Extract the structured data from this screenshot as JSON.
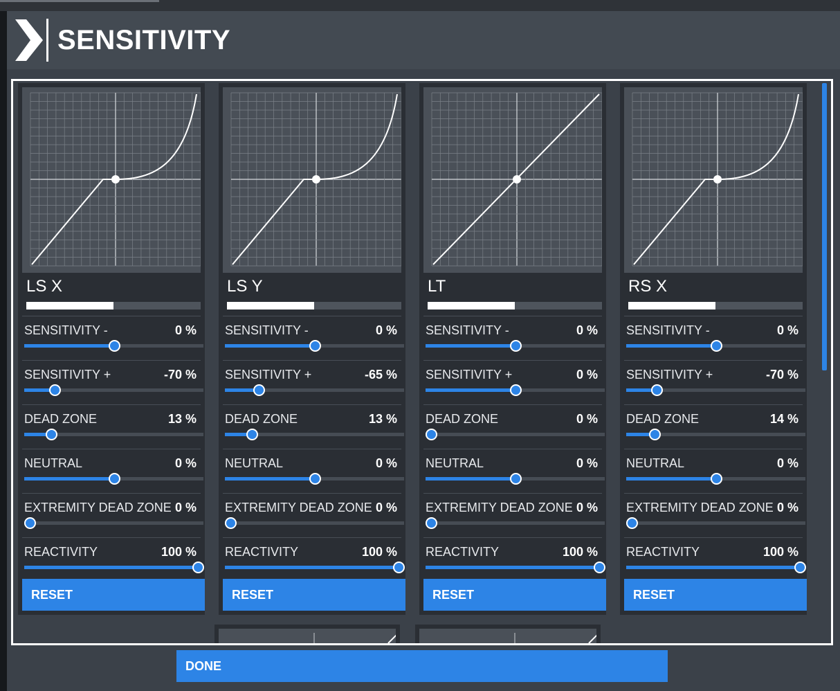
{
  "header": {
    "title": "SENSITIVITY"
  },
  "footer": {
    "done_label": "DONE"
  },
  "colors": {
    "accent": "#2d84e6",
    "panel": "#3b4149",
    "column": "#2a2e34",
    "graph": "#4a5058"
  },
  "axes": [
    {
      "name": "LS X",
      "meter": 0.5,
      "curve": "expo",
      "reset_label": "RESET",
      "settings": [
        {
          "label": "SENSITIVITY -",
          "value": "0 %",
          "pos": 0.5
        },
        {
          "label": "SENSITIVITY +",
          "value": "-70 %",
          "pos": 0.17
        },
        {
          "label": "DEAD ZONE",
          "value": "13 %",
          "pos": 0.15
        },
        {
          "label": "NEUTRAL",
          "value": "0 %",
          "pos": 0.5
        },
        {
          "label": "EXTREMITY DEAD ZONE",
          "value": "0 %",
          "pos": 0.03
        },
        {
          "label": "REACTIVITY",
          "value": "100 %",
          "pos": 0.97
        }
      ]
    },
    {
      "name": "LS Y",
      "meter": 0.5,
      "curve": "expo",
      "reset_label": "RESET",
      "settings": [
        {
          "label": "SENSITIVITY -",
          "value": "0 %",
          "pos": 0.5
        },
        {
          "label": "SENSITIVITY +",
          "value": "-65 %",
          "pos": 0.19
        },
        {
          "label": "DEAD ZONE",
          "value": "13 %",
          "pos": 0.15
        },
        {
          "label": "NEUTRAL",
          "value": "0 %",
          "pos": 0.5
        },
        {
          "label": "EXTREMITY DEAD ZONE",
          "value": "0 %",
          "pos": 0.03
        },
        {
          "label": "REACTIVITY",
          "value": "100 %",
          "pos": 0.97
        }
      ]
    },
    {
      "name": "LT",
      "meter": 0.5,
      "curve": "linear",
      "reset_label": "RESET",
      "settings": [
        {
          "label": "SENSITIVITY -",
          "value": "0 %",
          "pos": 0.5
        },
        {
          "label": "SENSITIVITY +",
          "value": "0 %",
          "pos": 0.5
        },
        {
          "label": "DEAD ZONE",
          "value": "0 %",
          "pos": 0.03
        },
        {
          "label": "NEUTRAL",
          "value": "0 %",
          "pos": 0.5
        },
        {
          "label": "EXTREMITY DEAD ZONE",
          "value": "0 %",
          "pos": 0.03
        },
        {
          "label": "REACTIVITY",
          "value": "100 %",
          "pos": 0.97
        }
      ]
    },
    {
      "name": "RS X",
      "meter": 0.5,
      "curve": "expo",
      "reset_label": "RESET",
      "settings": [
        {
          "label": "SENSITIVITY -",
          "value": "0 %",
          "pos": 0.5
        },
        {
          "label": "SENSITIVITY +",
          "value": "-70 %",
          "pos": 0.17
        },
        {
          "label": "DEAD ZONE",
          "value": "14 %",
          "pos": 0.16
        },
        {
          "label": "NEUTRAL",
          "value": "0 %",
          "pos": 0.5
        },
        {
          "label": "EXTREMITY DEAD ZONE",
          "value": "0 %",
          "pos": 0.03
        },
        {
          "label": "REACTIVITY",
          "value": "100 %",
          "pos": 0.97
        }
      ]
    }
  ]
}
